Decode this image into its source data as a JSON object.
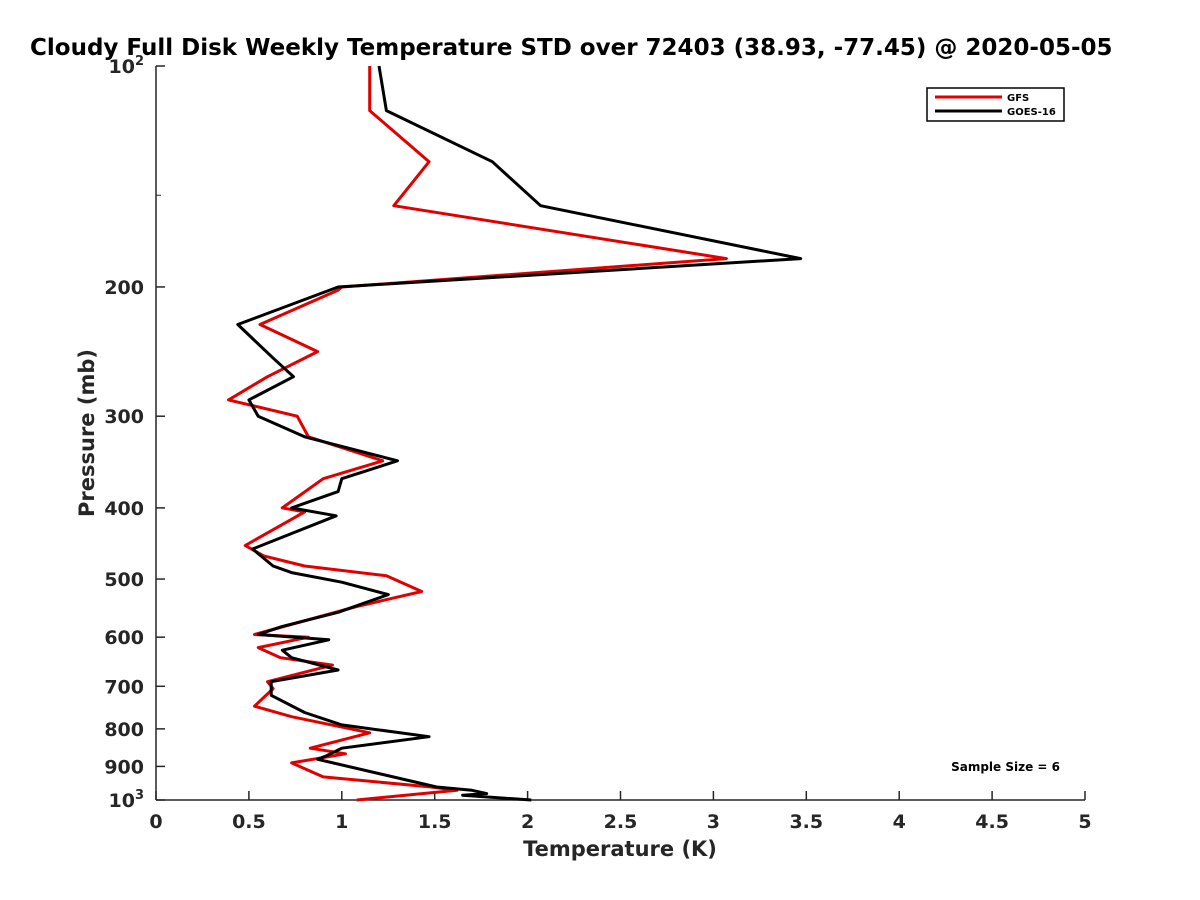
{
  "chart_data": {
    "type": "line",
    "title": "Cloudy Full Disk Weekly Temperature STD over 72403 (38.93, -77.45) @ 2020-05-05",
    "xlabel": "Temperature (K)",
    "ylabel": "Pressure (mb)",
    "xlim": [
      0,
      5
    ],
    "ylim": [
      100,
      1000
    ],
    "y_scale": "log",
    "y_reversed": true,
    "xticks": [
      "0",
      "0.5",
      "1",
      "1.5",
      "2",
      "2.5",
      "3",
      "3.5",
      "4",
      "4.5",
      "5"
    ],
    "yticks": [
      {
        "value": 100,
        "label": "10",
        "sup": "2"
      },
      {
        "value": 200,
        "label": "200",
        "sup": ""
      },
      {
        "value": 300,
        "label": "300",
        "sup": ""
      },
      {
        "value": 400,
        "label": "400",
        "sup": ""
      },
      {
        "value": 500,
        "label": "500",
        "sup": ""
      },
      {
        "value": 600,
        "label": "600",
        "sup": ""
      },
      {
        "value": 700,
        "label": "700",
        "sup": ""
      },
      {
        "value": 800,
        "label": "800",
        "sup": ""
      },
      {
        "value": 900,
        "label": "900",
        "sup": ""
      },
      {
        "value": 1000,
        "label": "10",
        "sup": "3"
      }
    ],
    "legend_position": "top-right",
    "grid": false,
    "annotation": "Sample Size = 6",
    "series": [
      {
        "name": "GFS",
        "color": "#e00000",
        "points": [
          [
            1.15,
            100
          ],
          [
            1.15,
            115
          ],
          [
            1.47,
            135
          ],
          [
            1.28,
            155
          ],
          [
            3.07,
            183
          ],
          [
            1.0,
            200
          ],
          [
            0.98,
            202
          ],
          [
            0.56,
            225
          ],
          [
            0.87,
            245
          ],
          [
            0.6,
            265
          ],
          [
            0.39,
            285
          ],
          [
            0.76,
            300
          ],
          [
            0.82,
            320
          ],
          [
            1.22,
            345
          ],
          [
            0.9,
            365
          ],
          [
            0.68,
            400
          ],
          [
            0.8,
            405
          ],
          [
            0.48,
            450
          ],
          [
            0.58,
            465
          ],
          [
            0.8,
            480
          ],
          [
            1.24,
            495
          ],
          [
            1.43,
            520
          ],
          [
            1.08,
            545
          ],
          [
            0.53,
            595
          ],
          [
            0.82,
            600
          ],
          [
            0.55,
            620
          ],
          [
            0.67,
            640
          ],
          [
            0.95,
            655
          ],
          [
            0.6,
            690
          ],
          [
            0.63,
            705
          ],
          [
            0.53,
            745
          ],
          [
            0.73,
            770
          ],
          [
            1.15,
            810
          ],
          [
            0.83,
            850
          ],
          [
            1.02,
            865
          ],
          [
            0.73,
            890
          ],
          [
            0.9,
            930
          ],
          [
            1.48,
            960
          ],
          [
            1.62,
            970
          ],
          [
            1.08,
            1000
          ]
        ]
      },
      {
        "name": "GOES-16",
        "color": "#000000",
        "points": [
          [
            1.2,
            100
          ],
          [
            1.24,
            115
          ],
          [
            1.81,
            135
          ],
          [
            2.07,
            155
          ],
          [
            3.47,
            183
          ],
          [
            0.98,
            200
          ],
          [
            0.44,
            225
          ],
          [
            0.63,
            250
          ],
          [
            0.74,
            265
          ],
          [
            0.5,
            285
          ],
          [
            0.55,
            300
          ],
          [
            0.8,
            320
          ],
          [
            1.3,
            345
          ],
          [
            1.0,
            365
          ],
          [
            0.98,
            380
          ],
          [
            0.73,
            400
          ],
          [
            0.97,
            410
          ],
          [
            0.52,
            455
          ],
          [
            0.63,
            480
          ],
          [
            0.73,
            490
          ],
          [
            1.0,
            505
          ],
          [
            1.25,
            525
          ],
          [
            0.98,
            555
          ],
          [
            0.68,
            580
          ],
          [
            0.55,
            595
          ],
          [
            0.93,
            605
          ],
          [
            0.68,
            625
          ],
          [
            0.73,
            640
          ],
          [
            0.98,
            665
          ],
          [
            0.62,
            690
          ],
          [
            0.62,
            720
          ],
          [
            0.8,
            760
          ],
          [
            1.0,
            790
          ],
          [
            1.47,
            820
          ],
          [
            1.0,
            850
          ],
          [
            0.92,
            870
          ],
          [
            0.87,
            880
          ],
          [
            1.51,
            960
          ],
          [
            1.7,
            970
          ],
          [
            1.78,
            980
          ],
          [
            1.65,
            985
          ],
          [
            2.02,
            1000
          ]
        ]
      }
    ]
  }
}
